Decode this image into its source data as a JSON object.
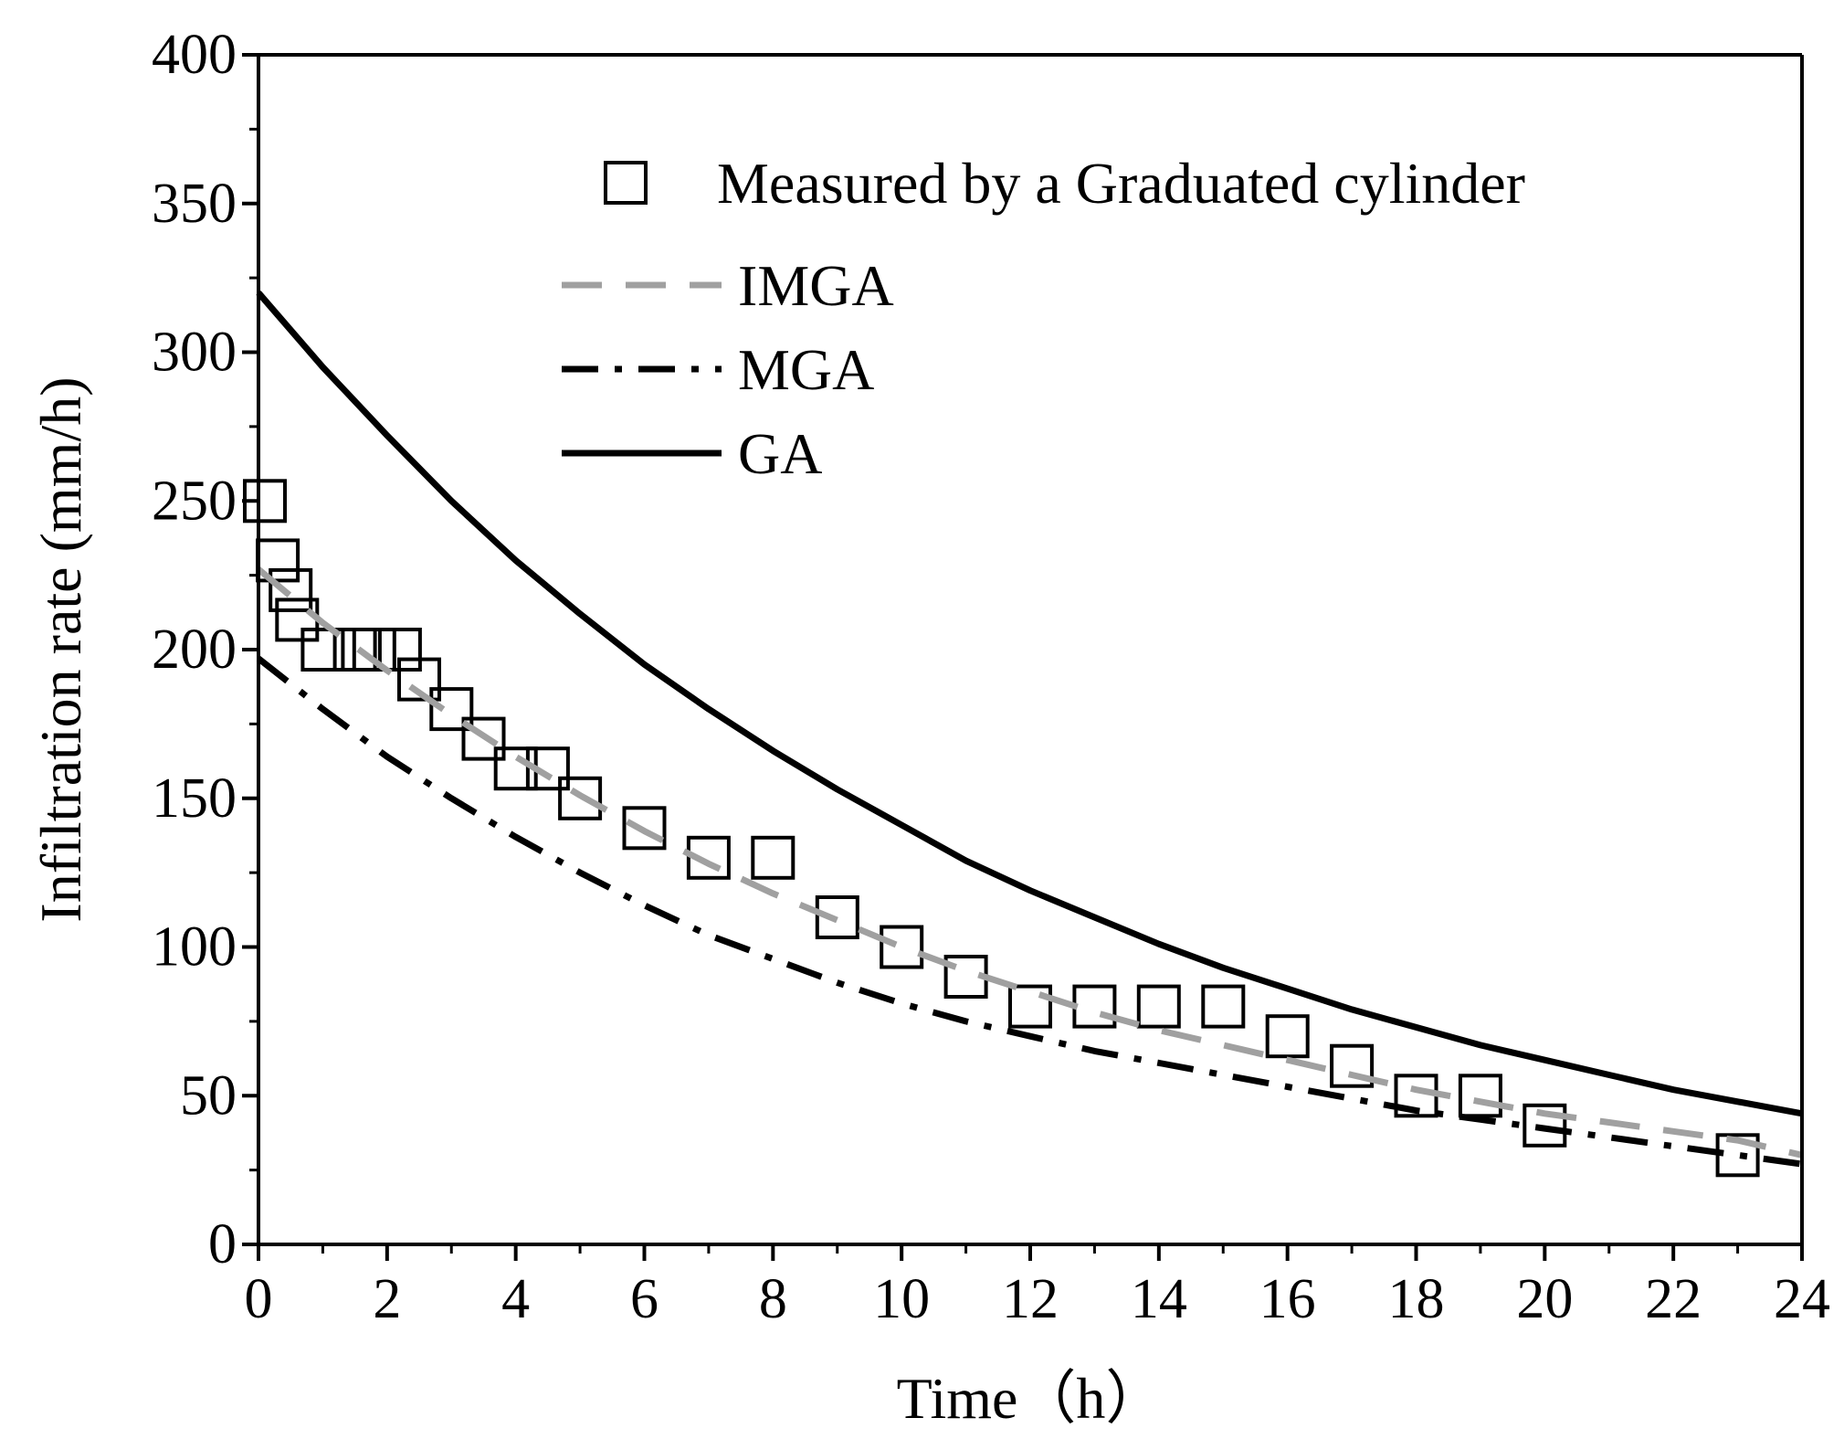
{
  "chart_data": {
    "type": "line",
    "title": "",
    "xlabel": "Time（h）",
    "ylabel": "Infiltration rate (mm/h)",
    "xlim": [
      0,
      24
    ],
    "ylim": [
      0,
      400
    ],
    "xticks": [
      0,
      2,
      4,
      6,
      8,
      10,
      12,
      14,
      16,
      18,
      20,
      22,
      24
    ],
    "yticks": [
      0,
      50,
      100,
      150,
      200,
      250,
      300,
      350,
      400
    ],
    "grid": false,
    "legend_position": "top-right",
    "series": [
      {
        "name": "Measured by a Graduated cylinder",
        "kind": "scatter",
        "marker": "open-square",
        "color": "#000000",
        "x": [
          0.1,
          0.3,
          0.5,
          0.6,
          1.0,
          1.5,
          1.8,
          2.2,
          2.5,
          3.0,
          3.5,
          4.0,
          4.5,
          5.0,
          6.0,
          7.0,
          8.0,
          9.0,
          10.0,
          11.0,
          12.0,
          13.0,
          14.0,
          15.0,
          16.0,
          17.0,
          18.0,
          19.0,
          20.0,
          23.0
        ],
        "y": [
          250,
          230,
          220,
          210,
          200,
          200,
          200,
          200,
          190,
          180,
          170,
          160,
          160,
          150,
          140,
          130,
          130,
          110,
          100,
          90,
          80,
          80,
          80,
          80,
          70,
          60,
          50,
          50,
          40,
          30
        ]
      },
      {
        "name": "IMGA",
        "kind": "line",
        "style": "dashed",
        "color": "#a0a0a0",
        "x": [
          0,
          1,
          2,
          3,
          4,
          5,
          6,
          7,
          8,
          9,
          10,
          11,
          12,
          13,
          14,
          15,
          16,
          17,
          18,
          19,
          20,
          21,
          22,
          23,
          24
        ],
        "y": [
          227,
          209,
          193,
          178,
          164,
          151,
          139,
          128,
          118,
          109,
          100,
          92,
          85,
          78,
          72,
          67,
          62,
          57,
          52,
          48,
          44,
          41,
          38,
          35,
          30
        ]
      },
      {
        "name": "MGA",
        "kind": "line",
        "style": "dash-dot",
        "color": "#000000",
        "x": [
          0,
          1,
          2,
          3,
          4,
          5,
          6,
          7,
          8,
          9,
          10,
          11,
          12,
          13,
          14,
          15,
          16,
          17,
          18,
          19,
          20,
          21,
          22,
          23,
          24
        ],
        "y": [
          197,
          180,
          164,
          150,
          137,
          125,
          114,
          104,
          96,
          88,
          81,
          75,
          70,
          65,
          61,
          57,
          53,
          49,
          45,
          42,
          39,
          36,
          33,
          30,
          27
        ]
      },
      {
        "name": "GA",
        "kind": "line",
        "style": "solid",
        "color": "#000000",
        "x": [
          0,
          1,
          2,
          3,
          4,
          5,
          6,
          7,
          8,
          9,
          10,
          11,
          12,
          13,
          14,
          15,
          16,
          17,
          18,
          19,
          20,
          21,
          22,
          23,
          24
        ],
        "y": [
          320,
          295,
          272,
          250,
          230,
          212,
          195,
          180,
          166,
          153,
          141,
          129,
          119,
          110,
          101,
          93,
          86,
          79,
          73,
          67,
          62,
          57,
          52,
          48,
          44
        ]
      }
    ]
  }
}
